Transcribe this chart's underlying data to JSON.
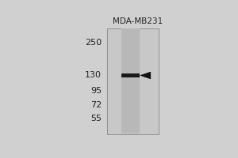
{
  "title": "MDA-MB231",
  "mw_markers": [
    250,
    130,
    95,
    72,
    55
  ],
  "band_mw": 130,
  "background_color": "#d0d0d0",
  "panel_bg": "#c8c8c8",
  "lane_color_light": "#b8b8b8",
  "lane_color_band": "#1a1a1a",
  "border_color": "#888888",
  "arrow_color": "#111111",
  "text_color": "#222222",
  "title_fontsize": 7.5,
  "marker_fontsize": 8,
  "fig_width": 3.0,
  "fig_height": 2.0,
  "dpi": 100,
  "log_min": 1.6,
  "log_max": 2.52
}
